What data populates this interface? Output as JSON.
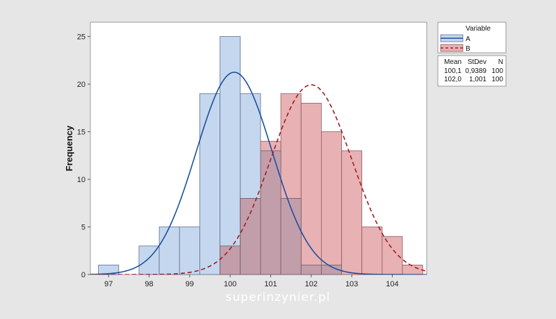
{
  "chart_data": {
    "type": "histogram",
    "ylabel": "Frequency",
    "xlim": [
      96.55,
      104.85
    ],
    "ylim": [
      0,
      26.5
    ],
    "x_ticks": [
      97,
      98,
      99,
      100,
      101,
      102,
      103,
      104
    ],
    "y_ticks": [
      0,
      5,
      10,
      15,
      20,
      25
    ],
    "bin_width": 0.5,
    "legend": {
      "title": "Variable",
      "position": "right",
      "table_headers": [
        "Mean",
        "StDev",
        "N"
      ]
    },
    "series": [
      {
        "name": "A",
        "mean": "100,1",
        "stdev": "0,9389",
        "n": "100",
        "mean_value": 100.1,
        "stdev_value": 0.9389,
        "n_value": 100,
        "fill_color": "#c5d7ee",
        "edge_color": "#5a6f94",
        "curve_color": "#1a4fa0",
        "curve_style": "solid",
        "bins": [
          {
            "start": 96.75,
            "end": 97.25,
            "count": 1
          },
          {
            "start": 97.25,
            "end": 97.75,
            "count": 0
          },
          {
            "start": 97.75,
            "end": 98.25,
            "count": 3
          },
          {
            "start": 98.25,
            "end": 98.75,
            "count": 5
          },
          {
            "start": 98.75,
            "end": 99.25,
            "count": 5
          },
          {
            "start": 99.25,
            "end": 99.75,
            "count": 19
          },
          {
            "start": 99.75,
            "end": 100.25,
            "count": 25
          },
          {
            "start": 100.25,
            "end": 100.75,
            "count": 19
          },
          {
            "start": 100.75,
            "end": 101.25,
            "count": 13
          },
          {
            "start": 101.25,
            "end": 101.75,
            "count": 8
          },
          {
            "start": 101.75,
            "end": 102.25,
            "count": 1
          },
          {
            "start": 102.25,
            "end": 102.75,
            "count": 1
          }
        ]
      },
      {
        "name": "B",
        "mean": "102,0",
        "stdev": "1,001",
        "n": "100",
        "mean_value": 102.0,
        "stdev_value": 1.001,
        "n_value": 100,
        "fill_color": "#e8b1b3",
        "edge_color": "#8a5b60",
        "curve_color": "#a01c22",
        "curve_style": "dashed",
        "bins": [
          {
            "start": 99.75,
            "end": 100.25,
            "count": 3
          },
          {
            "start": 100.25,
            "end": 100.75,
            "count": 8
          },
          {
            "start": 100.75,
            "end": 101.25,
            "count": 14
          },
          {
            "start": 101.25,
            "end": 101.75,
            "count": 19
          },
          {
            "start": 101.75,
            "end": 102.25,
            "count": 18
          },
          {
            "start": 102.25,
            "end": 102.75,
            "count": 15
          },
          {
            "start": 102.75,
            "end": 103.25,
            "count": 13
          },
          {
            "start": 103.25,
            "end": 103.75,
            "count": 5
          },
          {
            "start": 103.75,
            "end": 104.25,
            "count": 4
          },
          {
            "start": 104.25,
            "end": 104.75,
            "count": 1
          }
        ]
      }
    ],
    "overlap_color": "#c29eab",
    "plot_background": "#ffffff"
  },
  "watermark": "superinzynier.pl"
}
